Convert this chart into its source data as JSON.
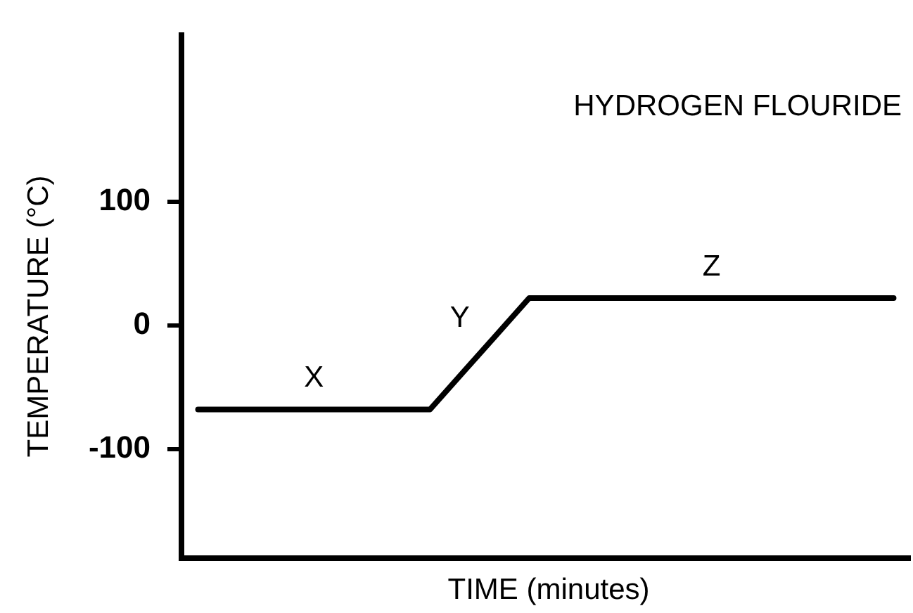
{
  "chart_data": {
    "type": "line",
    "title": "HYDROGEN FLOURIDE",
    "xlabel": "TIME (minutes)",
    "ylabel": "TEMPERATURE (°C)",
    "categories": [
      null,
      null,
      null,
      null,
      null,
      null,
      null,
      null,
      null,
      null,
      null,
      null,
      null,
      null,
      null,
      null,
      null,
      null,
      null,
      null,
      null,
      null
    ],
    "values": [
      -68,
      -68,
      -68,
      -68,
      -68,
      -68,
      -68,
      -68,
      -38,
      -8,
      22,
      22,
      22,
      22,
      22,
      22,
      22,
      22,
      22,
      22,
      22,
      22
    ],
    "color": "#000000",
    "ylim": [
      -188,
      234
    ],
    "yticks": [
      -100,
      0,
      100
    ],
    "tick_labels": "y",
    "grid": false,
    "legend": false,
    "marker": "none",
    "line_style": "solid",
    "annotations": [
      "X",
      "Y",
      "Z"
    ]
  }
}
